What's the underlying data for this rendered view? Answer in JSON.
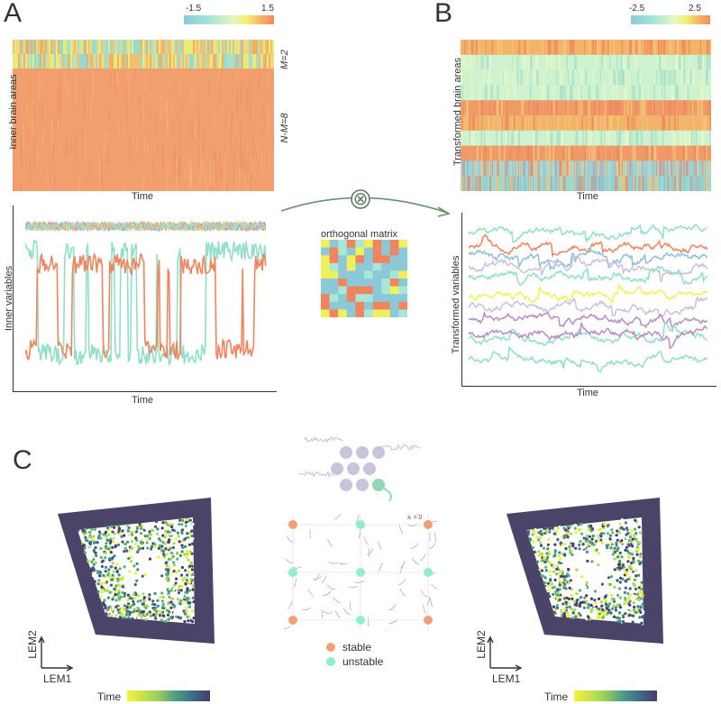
{
  "panelA": {
    "letter": "A",
    "colorbar": {
      "min": "-1.5",
      "max": "1.5"
    },
    "heatmap_ylabel": "Inner brain areas",
    "heatmap_xlabel": "Time",
    "m_label": "M=2",
    "nm_label": "N-M=8",
    "lines_ylabel": "Inner variables",
    "lines_xlabel": "Time"
  },
  "panelB": {
    "letter": "B",
    "colorbar": {
      "min": "-2.5",
      "max": "2.5"
    },
    "heatmap_ylabel": "Transformed brain areas",
    "heatmap_xlabel": "Time",
    "lines_ylabel": "Transformed variables",
    "lines_xlabel": "Time"
  },
  "middle": {
    "operator": "⊗",
    "matrix_title": "orthogonal matrix"
  },
  "panelC": {
    "letter": "C",
    "left": {
      "xlabel": "LEM1",
      "ylabel": "LEM2",
      "time_label": "Time"
    },
    "right": {
      "xlabel": "LEM1",
      "ylabel": "LEM2",
      "time_label": "Time"
    },
    "phase_annotation": "ẋᵢ = 0",
    "legend": {
      "stable": "stable",
      "unstable": "unstable"
    }
  },
  "colors": {
    "orange": "#f0845e",
    "mint": "#8fe0c4",
    "yellow": "#f0f05a",
    "lavender": "#c7c1dc",
    "purple": "#b98cc4",
    "blue": "#8cc0d8",
    "heat_orange": "#f29f70",
    "heat_green": "#cdf2cd",
    "heat_teal": "#9ad9cf",
    "viridis_dark": "#433c62",
    "viridis_yellow": "#e8f032"
  }
}
